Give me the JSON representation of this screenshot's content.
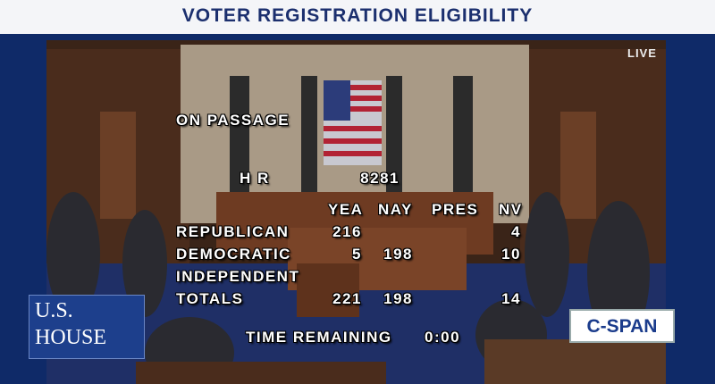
{
  "header": {
    "title": "VOTER REGISTRATION ELIGIBILITY"
  },
  "broadcast": {
    "live": "LIVE",
    "logo_left": [
      "U.S.",
      "HOUSE"
    ],
    "logo_right": "C-SPAN"
  },
  "vote": {
    "heading": "ON PASSAGE",
    "bill_prefix": "H R",
    "bill_number": "8281",
    "columns": [
      "YEA",
      "NAY",
      "PRES",
      "NV"
    ],
    "rows": [
      {
        "party": "REPUBLICAN",
        "yea": 216,
        "nv": 4
      },
      {
        "party": "DEMOCRATIC",
        "yea": 5,
        "nay": 198,
        "nv": 10
      },
      {
        "party": "INDEPENDENT"
      },
      {
        "party": "TOTALS",
        "yea": 221,
        "nay": 198,
        "nv": 14
      }
    ],
    "time_label": "TIME REMAINING",
    "time": "0:00"
  }
}
